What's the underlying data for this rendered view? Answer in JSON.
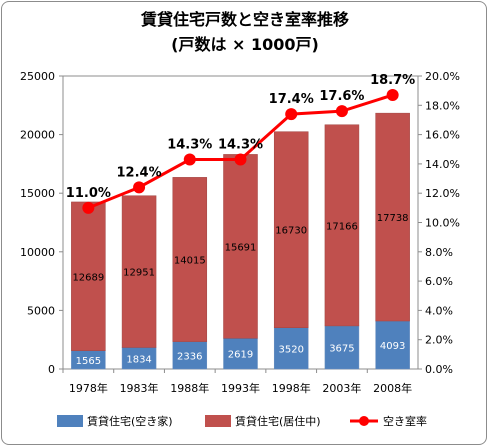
{
  "chart_data": {
    "type": "bar",
    "title": "賃貸住宅戸数と空き室率推移",
    "subtitle": "(戸数は × 1000戸)",
    "categories": [
      "1978年",
      "1983年",
      "1988年",
      "1993年",
      "1998年",
      "2003年",
      "2008年"
    ],
    "series": [
      {
        "name": "賃貸住宅(空き家)",
        "type": "bar-stacked",
        "color": "#4f81bd",
        "values": [
          1565,
          1834,
          2336,
          2619,
          3520,
          3675,
          4093
        ]
      },
      {
        "name": "賃貸住宅(居住中)",
        "type": "bar-stacked",
        "color": "#c0504d",
        "values": [
          12689,
          12951,
          14015,
          15691,
          16730,
          17166,
          17738
        ]
      },
      {
        "name": "空き室率",
        "type": "line",
        "axis": "right",
        "color": "#ff0000",
        "values": [
          11.0,
          12.4,
          14.3,
          14.3,
          17.4,
          17.6,
          18.7
        ],
        "labels": [
          "11.0%",
          "12.4%",
          "14.3%",
          "14.3%",
          "17.4%",
          "17.6%",
          "18.7%"
        ]
      }
    ],
    "ylim": [
      0,
      25000
    ],
    "yticks": [
      "0",
      "5000",
      "10000",
      "15000",
      "20000",
      "25000"
    ],
    "y2lim": [
      0,
      20
    ],
    "y2ticks": [
      "0.0%",
      "2.0%",
      "4.0%",
      "6.0%",
      "8.0%",
      "10.0%",
      "12.0%",
      "14.0%",
      "16.0%",
      "18.0%",
      "20.0%"
    ],
    "legend_position": "bottom",
    "grid": false
  }
}
